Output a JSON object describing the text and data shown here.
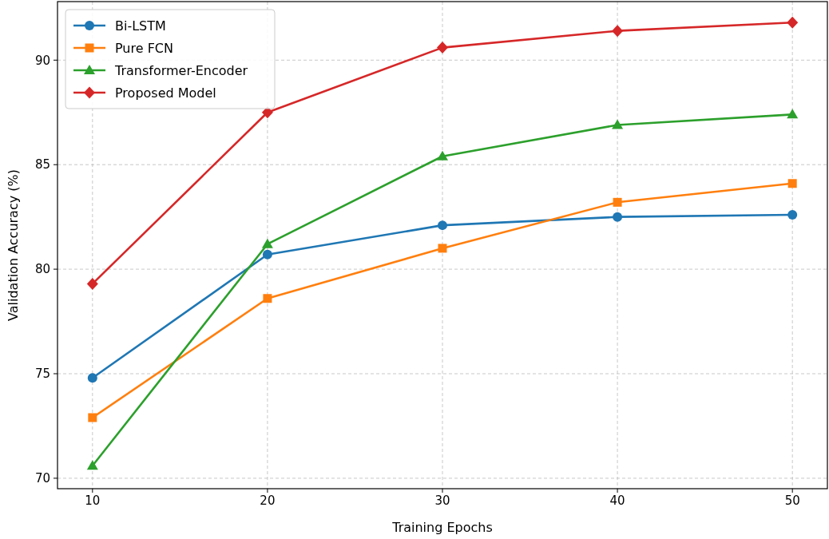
{
  "chart_data": {
    "type": "line",
    "xlabel": "Training Epochs",
    "ylabel": "Validation Accuracy (%)",
    "x": [
      10,
      20,
      30,
      40,
      50
    ],
    "xlim": [
      8,
      52
    ],
    "xticks": [
      10,
      20,
      30,
      40,
      50
    ],
    "ylim": [
      69.5,
      92.8
    ],
    "yticks": [
      70,
      75,
      80,
      85,
      90
    ],
    "grid": true,
    "legend": "top left",
    "line_style": "solid",
    "series": [
      {
        "name": "Bi-LSTM",
        "color": "#1f77b4",
        "marker": "circle",
        "values": [
          74.8,
          80.7,
          82.1,
          82.5,
          82.6
        ]
      },
      {
        "name": "Pure FCN",
        "color": "#ff7f0e",
        "marker": "square",
        "values": [
          72.9,
          78.6,
          81.0,
          83.2,
          84.1
        ]
      },
      {
        "name": "Transformer-Encoder",
        "color": "#2ca02c",
        "marker": "triangle",
        "values": [
          70.6,
          81.2,
          85.4,
          86.9,
          87.4
        ]
      },
      {
        "name": "Proposed Model",
        "color": "#d62728",
        "marker": "diamond",
        "values": [
          79.3,
          87.5,
          90.6,
          91.4,
          91.8
        ]
      }
    ]
  }
}
